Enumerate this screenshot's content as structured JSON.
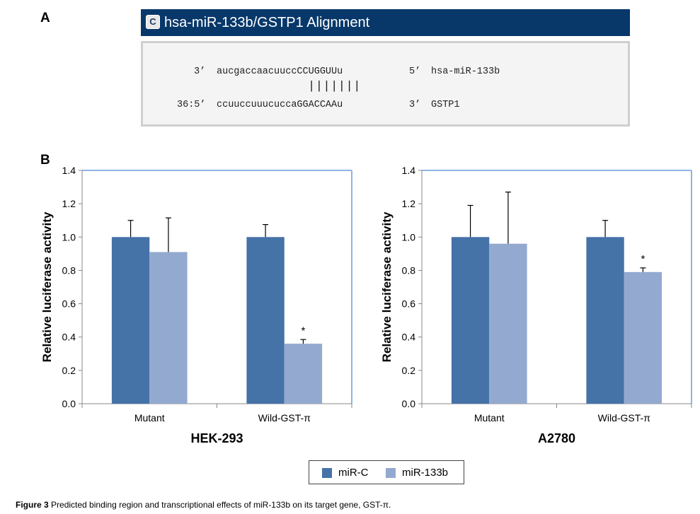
{
  "panels": {
    "a": "A",
    "b": "B"
  },
  "alignment": {
    "icon_letter": "C",
    "title": "hsa-miR-133b/GSTP1 Alignment",
    "line1_prefix": "3’",
    "line1_seq": "aucgaccaacuuccCCUGGUUu",
    "line1_end": "5’",
    "line1_name": "hsa-miR-133b",
    "pairing": "|||||||",
    "line2_prefix": "36:5’",
    "line2_seq": "ccuuccuuucuccaGGACCAAu",
    "line2_end": "3’",
    "line2_name": "GSTP1"
  },
  "colors": {
    "series1": "#4572a7",
    "series2": "#93a9cf",
    "axis": "#8eb4e3"
  },
  "legend": {
    "items": [
      "miR-C",
      "miR-133b"
    ]
  },
  "caption": {
    "label": "Figure 3",
    "text": "Predicted binding region and transcriptional effects of miR-133b on its target gene, GST-π."
  },
  "chart_data": [
    {
      "type": "bar",
      "title": "HEK-293",
      "xlabel": "HEK-293",
      "ylabel": "Relative luciferase activity",
      "categories": [
        "Mutant",
        "Wild-GST-π"
      ],
      "ylim": [
        0,
        1.4
      ],
      "yticks": [
        "0.0",
        "0.2",
        "0.4",
        "0.6",
        "0.8",
        "1.0",
        "1.2",
        "1.4"
      ],
      "series": [
        {
          "name": "miR-C",
          "values": [
            1.0,
            1.0
          ],
          "errors": [
            0.1,
            0.075
          ]
        },
        {
          "name": "miR-133b",
          "values": [
            0.91,
            0.36
          ],
          "errors": [
            0.205,
            0.025
          ]
        }
      ],
      "annotations": [
        {
          "category": 1,
          "series": 1,
          "text": "*"
        }
      ],
      "grid": false
    },
    {
      "type": "bar",
      "title": "A2780",
      "xlabel": "A2780",
      "ylabel": "Relative luciferase activity",
      "categories": [
        "Mutant",
        "Wild-GST-π"
      ],
      "ylim": [
        0,
        1.4
      ],
      "yticks": [
        "0.0",
        "0.2",
        "0.4",
        "0.6",
        "0.8",
        "1.0",
        "1.2",
        "1.4"
      ],
      "series": [
        {
          "name": "miR-C",
          "values": [
            1.0,
            1.0
          ],
          "errors": [
            0.19,
            0.1
          ]
        },
        {
          "name": "miR-133b",
          "values": [
            0.96,
            0.79
          ],
          "errors": [
            0.31,
            0.025
          ]
        }
      ],
      "annotations": [
        {
          "category": 1,
          "series": 1,
          "text": "*"
        }
      ],
      "grid": false
    }
  ]
}
